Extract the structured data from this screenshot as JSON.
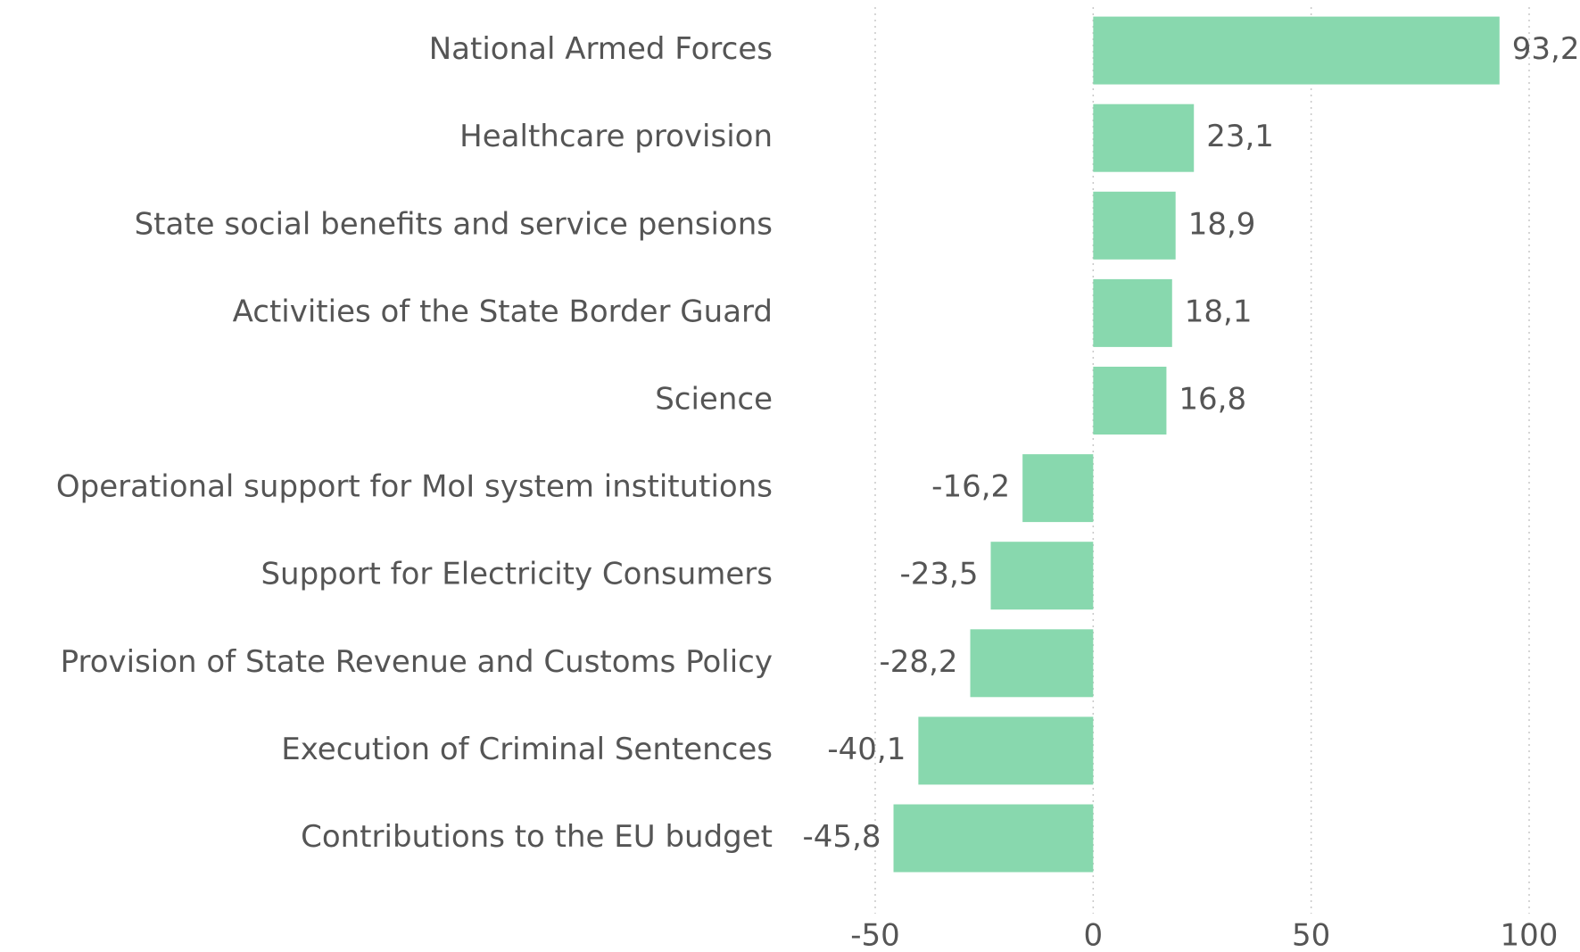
{
  "chart_data": {
    "type": "bar",
    "orientation": "horizontal",
    "categories": [
      "National Armed Forces",
      "Healthcare provision",
      "State social benefits and service pensions",
      "Activities of the State Border Guard",
      "Science",
      "Operational support for MoI system institutions",
      "Support for Electricity Consumers",
      "Provision of State Revenue and Customs Policy",
      "Execution of Criminal Sentences",
      "Contributions to the EU budget"
    ],
    "values": [
      93.2,
      23.1,
      18.9,
      18.1,
      16.8,
      -16.2,
      -23.5,
      -28.2,
      -40.1,
      -45.8
    ],
    "value_labels": [
      "93,2",
      "23,1",
      "18,9",
      "18,1",
      "16,8",
      "-16,2",
      "-23,5",
      "-28,2",
      "-40,1",
      "-45,8"
    ],
    "color": "#88d8ae",
    "xlim": [
      -50,
      100
    ],
    "xticks": [
      -50,
      0,
      50,
      100
    ],
    "grid": true
  }
}
